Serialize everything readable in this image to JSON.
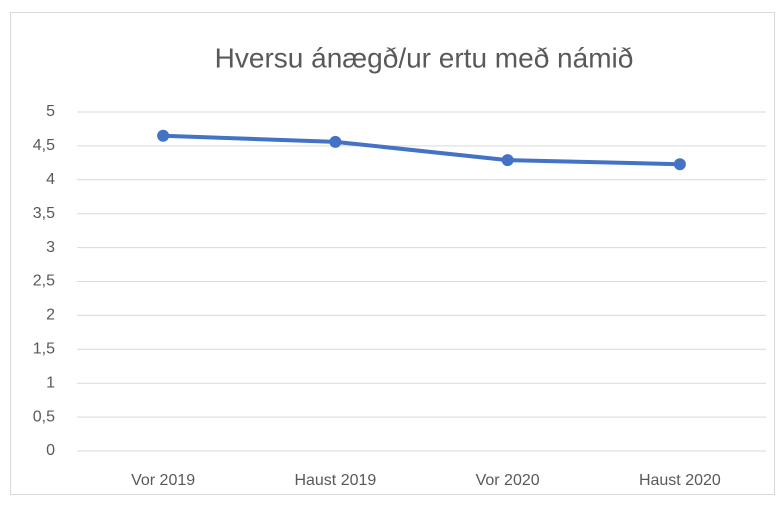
{
  "chart_data": {
    "type": "line",
    "title": "Hversu ánægð/ur ertu með námið",
    "categories": [
      "Vor 2019",
      "Haust 2019",
      "Vor 2020",
      "Haust 2020"
    ],
    "series": [
      {
        "name": "Hversu ánægð/ur ertu með námið",
        "color": "#4472c4",
        "values": [
          4.65,
          4.56,
          4.29,
          4.23
        ]
      }
    ],
    "ylim": [
      0,
      5
    ],
    "yticks": [
      0,
      {
        "value": 0.5,
        "label": "0,5"
      },
      1,
      {
        "value": 1.5,
        "label": "1,5"
      },
      2,
      {
        "value": 2.5,
        "label": "2,5"
      },
      3,
      {
        "value": 3.5,
        "label": "3,5"
      },
      4,
      {
        "value": 4.5,
        "label": "4,5"
      },
      5
    ],
    "grid": true
  }
}
